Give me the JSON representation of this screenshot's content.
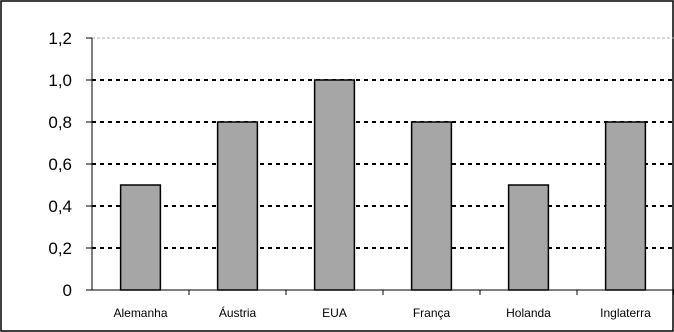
{
  "chart_data": {
    "type": "bar",
    "categories": [
      "Alemanha",
      "Áustria",
      "EUA",
      "França",
      "Holanda",
      "Inglaterra"
    ],
    "values": [
      0.5,
      0.8,
      1.0,
      0.8,
      0.5,
      0.8
    ],
    "yticks": [
      "0",
      "0,2",
      "0,4",
      "0,6",
      "0,8",
      "1,0",
      "1,2"
    ],
    "ylim": [
      0,
      1.2
    ],
    "title": "",
    "xlabel": "",
    "ylabel": "",
    "grid": true,
    "legend": "none",
    "colors": {
      "bar": "#a6a6a6",
      "bar_stroke": "#000000",
      "grid": "#000000",
      "grid_top": "#b0b0b0"
    }
  }
}
